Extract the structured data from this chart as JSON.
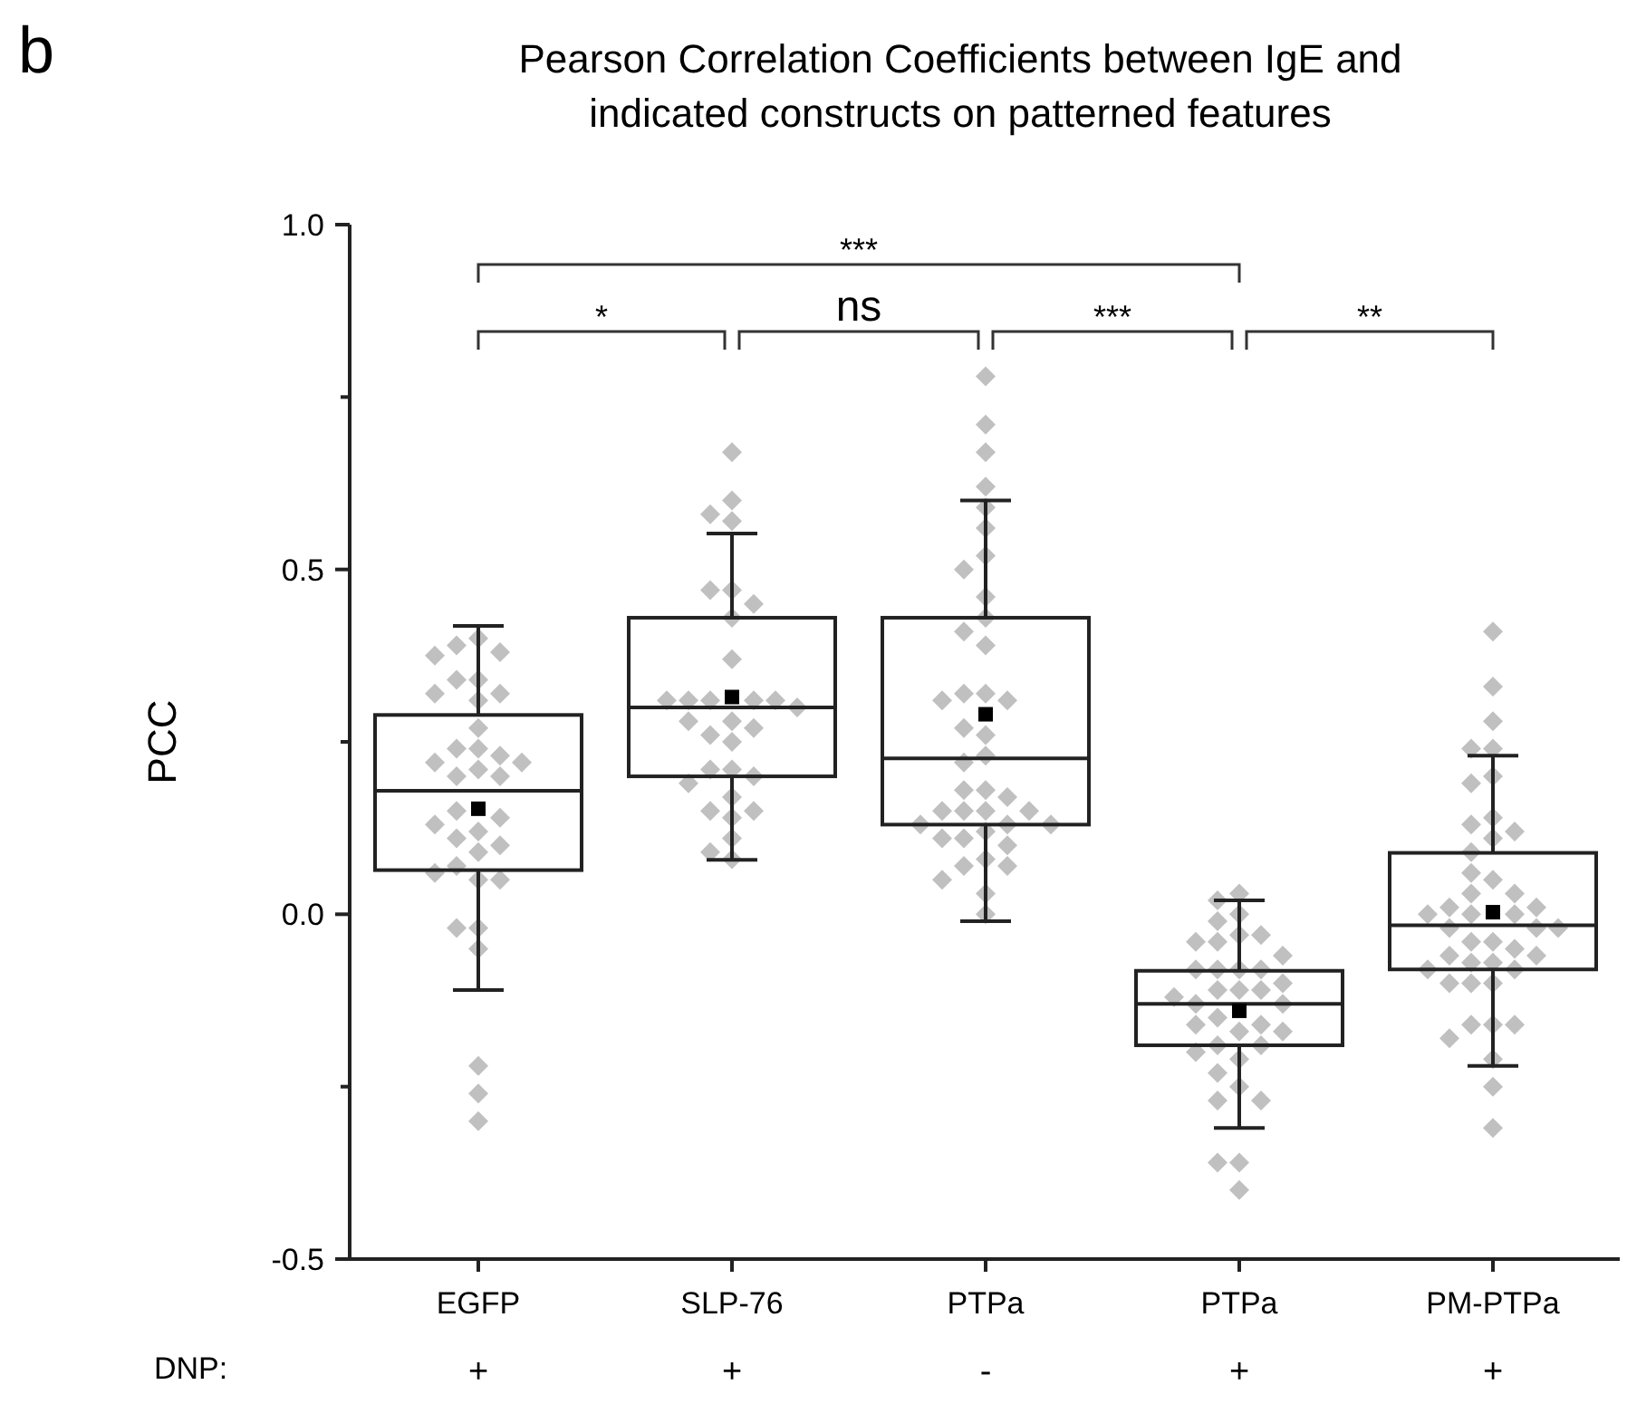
{
  "chart_data": {
    "type": "box",
    "title": "Pearson Correlation Coefficients between IgE and indicated constructs on patterned features",
    "ylabel": "PCC",
    "categories": [
      "EGFP\n+",
      "SLP-76\n+",
      "PTPa\n-",
      "PTPa\n+",
      "PM-PTPa\n+"
    ],
    "ylim": [
      -0.5,
      1.0
    ],
    "yticks": [
      {
        "value": -0.5,
        "label": "-0.5"
      },
      {
        "value": -0.25,
        "label": null
      },
      {
        "value": 0,
        "label": "0.0"
      },
      {
        "value": 0.25,
        "label": null
      },
      {
        "value": 0.5,
        "label": "0.5"
      },
      {
        "value": 0.75,
        "label": null
      },
      {
        "value": 1.0,
        "label": "1.0"
      }
    ],
    "grid": false,
    "marker": "diamond",
    "boxes": [
      {
        "low": -0.11,
        "q1": 0.064,
        "median": 0.179,
        "q3": 0.289,
        "high": 0.418,
        "mean": 0.153
      },
      {
        "low": 0.079,
        "q1": 0.2,
        "median": 0.3,
        "q3": 0.43,
        "high": 0.552,
        "mean": 0.315
      },
      {
        "low": -0.01,
        "q1": 0.13,
        "median": 0.226,
        "q3": 0.43,
        "high": 0.6,
        "mean": 0.29
      },
      {
        "low": -0.31,
        "q1": -0.19,
        "median": -0.13,
        "q3": -0.082,
        "high": 0.02,
        "mean": -0.14
      },
      {
        "low": -0.22,
        "q1": -0.08,
        "median": -0.016,
        "q3": 0.089,
        "high": 0.23,
        "mean": 0.003
      }
    ],
    "series": [
      {
        "type": "scatter",
        "color": "#c0c0c0",
        "x": [
          "EGFP\n+",
          "EGFP\n+",
          "EGFP\n+",
          "EGFP\n+",
          "EGFP\n+",
          "EGFP\n+",
          "EGFP\n+",
          "EGFP\n+",
          "EGFP\n+",
          "EGFP\n+",
          "EGFP\n+",
          "EGFP\n+",
          "EGFP\n+",
          "EGFP\n+",
          "EGFP\n+",
          "EGFP\n+",
          "EGFP\n+",
          "EGFP\n+",
          "EGFP\n+",
          "EGFP\n+",
          "EGFP\n+",
          "EGFP\n+",
          "EGFP\n+",
          "EGFP\n+",
          "EGFP\n+",
          "EGFP\n+",
          "EGFP\n+",
          "EGFP\n+",
          "EGFP\n+",
          "EGFP\n+",
          "EGFP\n+",
          "EGFP\n+",
          "EGFP\n+",
          "EGFP\n+",
          "EGFP\n+"
        ],
        "values": [
          0.4,
          0.39,
          0.38,
          0.375,
          0.34,
          0.34,
          0.32,
          0.32,
          0.31,
          0.27,
          0.24,
          0.24,
          0.23,
          0.22,
          0.22,
          0.21,
          0.2,
          0.2,
          0.15,
          0.14,
          0.13,
          0.12,
          0.11,
          0.1,
          0.09,
          0.07,
          0.05,
          0.05,
          -0.02,
          -0.02,
          -0.05,
          -0.22,
          -0.26,
          -0.3,
          0.06
        ]
      },
      {
        "type": "scatter",
        "color": "#c0c0c0",
        "x": [
          "SLP-76\n+",
          "SLP-76\n+",
          "SLP-76\n+",
          "SLP-76\n+",
          "SLP-76\n+",
          "SLP-76\n+",
          "SLP-76\n+",
          "SLP-76\n+",
          "SLP-76\n+",
          "SLP-76\n+",
          "SLP-76\n+",
          "SLP-76\n+",
          "SLP-76\n+",
          "SLP-76\n+",
          "SLP-76\n+",
          "SLP-76\n+",
          "SLP-76\n+",
          "SLP-76\n+",
          "SLP-76\n+",
          "SLP-76\n+",
          "SLP-76\n+",
          "SLP-76\n+",
          "SLP-76\n+",
          "SLP-76\n+",
          "SLP-76\n+",
          "SLP-76\n+",
          "SLP-76\n+",
          "SLP-76\n+",
          "SLP-76\n+",
          "SLP-76\n+",
          "SLP-76\n+"
        ],
        "values": [
          0.67,
          0.6,
          0.57,
          0.58,
          0.47,
          0.47,
          0.45,
          0.43,
          0.37,
          0.31,
          0.31,
          0.31,
          0.31,
          0.31,
          0.28,
          0.26,
          0.27,
          0.25,
          0.21,
          0.21,
          0.17,
          0.15,
          0.15,
          0.14,
          0.11,
          0.09,
          0.08,
          0.3,
          0.2,
          0.19,
          0.28
        ]
      },
      {
        "type": "scatter",
        "color": "#c0c0c0",
        "x": [
          "PTPa\n-",
          "PTPa\n-",
          "PTPa\n-",
          "PTPa\n-",
          "PTPa\n-",
          "PTPa\n-",
          "PTPa\n-",
          "PTPa\n-",
          "PTPa\n-",
          "PTPa\n-",
          "PTPa\n-",
          "PTPa\n-",
          "PTPa\n-",
          "PTPa\n-",
          "PTPa\n-",
          "PTPa\n-",
          "PTPa\n-",
          "PTPa\n-",
          "PTPa\n-",
          "PTPa\n-",
          "PTPa\n-",
          "PTPa\n-",
          "PTPa\n-",
          "PTPa\n-",
          "PTPa\n-",
          "PTPa\n-",
          "PTPa\n-",
          "PTPa\n-",
          "PTPa\n-",
          "PTPa\n-",
          "PTPa\n-",
          "PTPa\n-",
          "PTPa\n-",
          "PTPa\n-",
          "PTPa\n-",
          "PTPa\n-",
          "PTPa\n-",
          "PTPa\n-",
          "PTPa\n-",
          "PTPa\n-"
        ],
        "values": [
          0.78,
          0.71,
          0.67,
          0.62,
          0.59,
          0.56,
          0.52,
          0.5,
          0.46,
          0.43,
          0.41,
          0.39,
          0.32,
          0.32,
          0.31,
          0.31,
          0.27,
          0.26,
          0.23,
          0.22,
          0.18,
          0.18,
          0.17,
          0.15,
          0.15,
          0.15,
          0.15,
          0.13,
          0.13,
          0.13,
          0.12,
          0.11,
          0.11,
          0.1,
          0.08,
          0.07,
          0.07,
          0.03,
          0.0,
          0.05
        ]
      },
      {
        "type": "scatter",
        "color": "#c0c0c0",
        "x": [
          "PTPa\n+",
          "PTPa\n+",
          "PTPa\n+",
          "PTPa\n+",
          "PTPa\n+",
          "PTPa\n+",
          "PTPa\n+",
          "PTPa\n+",
          "PTPa\n+",
          "PTPa\n+",
          "PTPa\n+",
          "PTPa\n+",
          "PTPa\n+",
          "PTPa\n+",
          "PTPa\n+",
          "PTPa\n+",
          "PTPa\n+",
          "PTPa\n+",
          "PTPa\n+",
          "PTPa\n+",
          "PTPa\n+",
          "PTPa\n+",
          "PTPa\n+",
          "PTPa\n+",
          "PTPa\n+",
          "PTPa\n+",
          "PTPa\n+",
          "PTPa\n+",
          "PTPa\n+",
          "PTPa\n+",
          "PTPa\n+",
          "PTPa\n+",
          "PTPa\n+",
          "PTPa\n+",
          "PTPa\n+",
          "PTPa\n+"
        ],
        "values": [
          0.03,
          0.02,
          0.0,
          -0.01,
          -0.03,
          -0.03,
          -0.04,
          -0.04,
          -0.08,
          -0.08,
          -0.08,
          -0.08,
          -0.1,
          -0.11,
          -0.11,
          -0.11,
          -0.13,
          -0.13,
          -0.15,
          -0.16,
          -0.16,
          -0.17,
          -0.17,
          -0.19,
          -0.19,
          -0.21,
          -0.23,
          -0.25,
          -0.27,
          -0.27,
          -0.36,
          -0.36,
          -0.4,
          -0.06,
          -0.12,
          -0.2
        ]
      },
      {
        "type": "scatter",
        "color": "#c0c0c0",
        "x": [
          "PM-PTPa\n+",
          "PM-PTPa\n+",
          "PM-PTPa\n+",
          "PM-PTPa\n+",
          "PM-PTPa\n+",
          "PM-PTPa\n+",
          "PM-PTPa\n+",
          "PM-PTPa\n+",
          "PM-PTPa\n+",
          "PM-PTPa\n+",
          "PM-PTPa\n+",
          "PM-PTPa\n+",
          "PM-PTPa\n+",
          "PM-PTPa\n+",
          "PM-PTPa\n+",
          "PM-PTPa\n+",
          "PM-PTPa\n+",
          "PM-PTPa\n+",
          "PM-PTPa\n+",
          "PM-PTPa\n+",
          "PM-PTPa\n+",
          "PM-PTPa\n+",
          "PM-PTPa\n+",
          "PM-PTPa\n+",
          "PM-PTPa\n+",
          "PM-PTPa\n+",
          "PM-PTPa\n+",
          "PM-PTPa\n+",
          "PM-PTPa\n+",
          "PM-PTPa\n+",
          "PM-PTPa\n+",
          "PM-PTPa\n+",
          "PM-PTPa\n+",
          "PM-PTPa\n+",
          "PM-PTPa\n+",
          "PM-PTPa\n+",
          "PM-PTPa\n+",
          "PM-PTPa\n+",
          "PM-PTPa\n+",
          "PM-PTPa\n+",
          "PM-PTPa\n+",
          "PM-PTPa\n+",
          "PM-PTPa\n+"
        ],
        "values": [
          0.41,
          0.33,
          0.28,
          0.24,
          0.24,
          0.2,
          0.19,
          0.14,
          0.13,
          0.12,
          0.11,
          0.09,
          0.05,
          0.03,
          0.03,
          0.01,
          0.01,
          0.0,
          0.0,
          0.0,
          -0.02,
          -0.02,
          -0.02,
          -0.04,
          -0.04,
          -0.05,
          -0.06,
          -0.06,
          -0.07,
          -0.07,
          -0.08,
          -0.08,
          -0.1,
          -0.1,
          -0.1,
          -0.16,
          -0.16,
          -0.16,
          -0.18,
          -0.21,
          -0.25,
          -0.31,
          0.06
        ]
      }
    ],
    "annotations": [
      "b",
      "***",
      "*",
      "ns",
      "***",
      "**",
      "DNP:"
    ]
  }
}
